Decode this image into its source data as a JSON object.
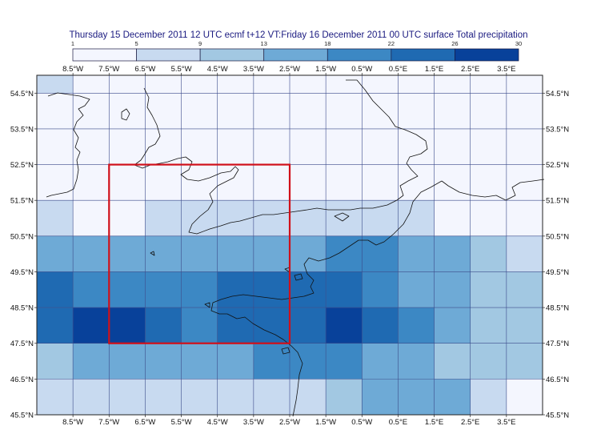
{
  "title": "Thursday 15 December 2011 12 UTC ecmf t+12 VT:Friday 16 December 2011 00 UTC surface  Total precipitation",
  "legend": {
    "breaks": [
      "1",
      "5",
      "9",
      "13",
      "18",
      "22",
      "26",
      "30"
    ],
    "colors": [
      "#f4f6fe",
      "#c8daf0",
      "#a2c8e2",
      "#6eaad6",
      "#3c88c4",
      "#1f6ab2",
      "#08419a"
    ]
  },
  "axes": {
    "lon_labels": [
      "8.5°W",
      "7.5°W",
      "6.5°W",
      "5.5°W",
      "4.5°W",
      "3.5°W",
      "2.5°W",
      "1.5°W",
      "0.5°W",
      "0.5°E",
      "1.5°E",
      "2.5°E",
      "3.5°E"
    ],
    "lat_labels": [
      "54.5°N",
      "53.5°N",
      "52.5°N",
      "51.5°N",
      "50.5°N",
      "49.5°N",
      "48.5°N",
      "47.5°N",
      "46.5°N",
      "45.5°N"
    ]
  },
  "grid": {
    "lon_range": [
      -9.5,
      4.5
    ],
    "lat_range": [
      45.5,
      55
    ],
    "rows_top_to_bottom": [
      [
        1,
        0,
        0,
        0,
        0,
        0,
        0,
        0,
        0,
        0,
        0,
        0,
        0,
        0
      ],
      [
        0,
        0,
        0,
        0,
        0,
        0,
        0,
        0,
        0,
        0,
        0,
        0,
        0,
        0
      ],
      [
        0,
        0,
        0,
        0,
        0,
        0,
        0,
        0,
        0,
        0,
        0,
        0,
        0,
        0
      ],
      [
        0,
        0,
        0,
        0,
        0,
        0,
        0,
        0,
        0,
        0,
        0,
        0,
        0,
        0
      ],
      [
        1,
        0,
        0,
        1,
        1,
        1,
        1,
        1,
        1,
        1,
        1,
        0,
        0,
        0
      ],
      [
        3,
        3,
        3,
        3,
        3,
        3,
        3,
        3,
        4,
        4,
        3,
        3,
        2,
        1
      ],
      [
        5,
        4,
        4,
        4,
        4,
        5,
        5,
        5,
        5,
        4,
        3,
        3,
        2,
        2
      ],
      [
        5,
        6,
        6,
        5,
        4,
        5,
        5,
        5,
        6,
        5,
        4,
        3,
        2,
        2
      ],
      [
        2,
        3,
        3,
        3,
        3,
        3,
        4,
        4,
        4,
        3,
        3,
        2,
        2,
        2
      ],
      [
        1,
        1,
        1,
        1,
        1,
        1,
        1,
        1,
        2,
        3,
        3,
        3,
        1,
        0
      ]
    ]
  },
  "highlight_box": {
    "lon": [
      -7.5,
      -2.5
    ],
    "lat": [
      47.5,
      52.5
    ],
    "color": "#d0101a"
  }
}
